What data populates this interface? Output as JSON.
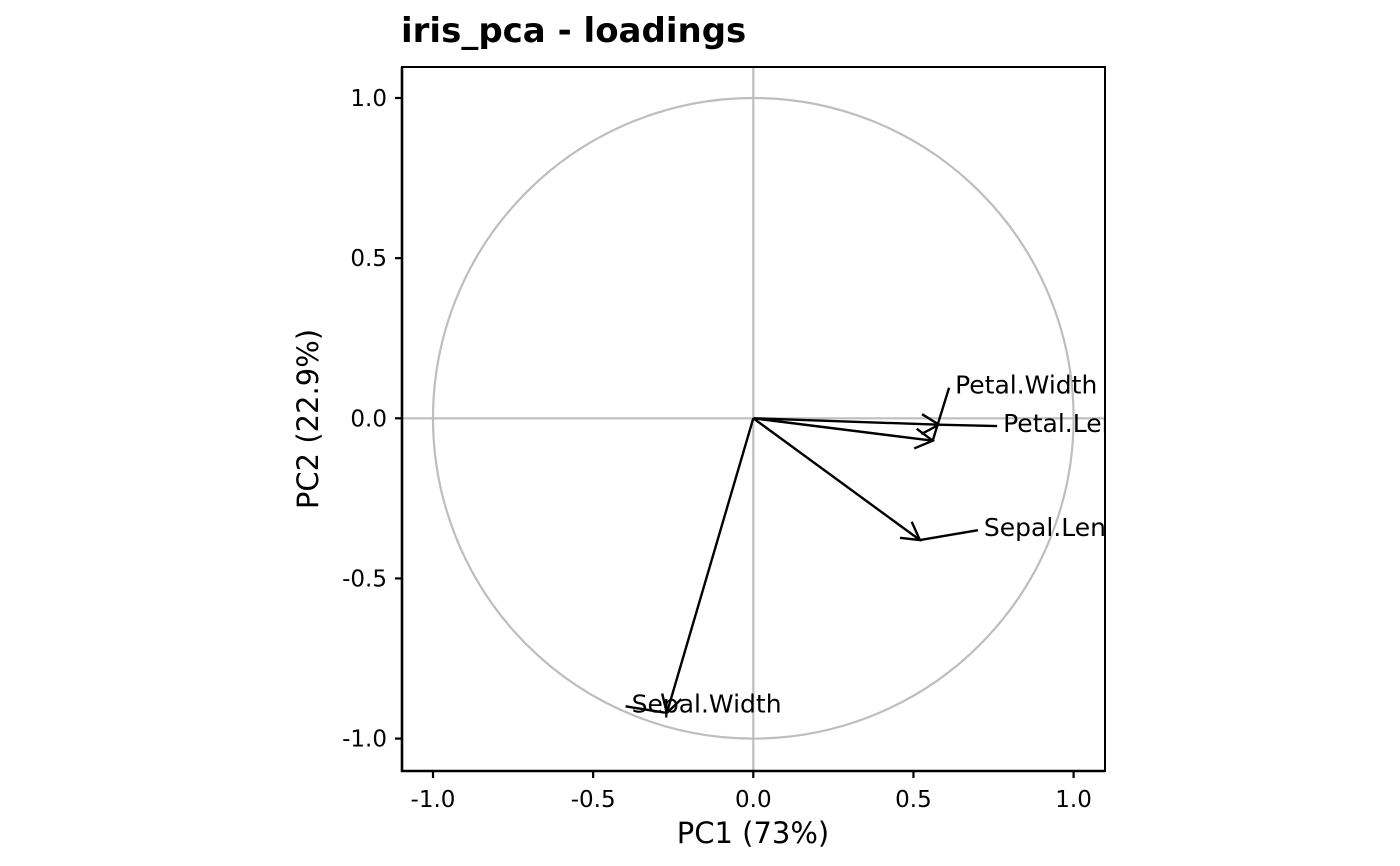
{
  "chart_data": {
    "type": "scatter",
    "title": "iris_pca - loadings",
    "xlabel": "PC1 (73%)",
    "ylabel": "PC2 (22.9%)",
    "xlim": [
      -1.1,
      1.1
    ],
    "ylim": [
      -1.1,
      1.1
    ],
    "x_ticks": [
      -1.0,
      -0.5,
      0.0,
      0.5,
      1.0
    ],
    "y_ticks": [
      -1.0,
      -0.5,
      0.0,
      0.5,
      1.0
    ],
    "x_tick_labels": [
      "-1.0",
      "-0.5",
      "0.0",
      "0.5",
      "1.0"
    ],
    "y_tick_labels": [
      "-1.0",
      "-0.5",
      "0.0",
      "0.5",
      "1.0"
    ],
    "unit_circle": true,
    "reference_lines": {
      "x": 0,
      "y": 0
    },
    "grid": false,
    "colors": {
      "arrows": "#000000",
      "reference": "#bebebe",
      "background": "#ffffff"
    },
    "loadings": [
      {
        "name": "Sepal.Length",
        "x": 0.52,
        "y": -0.38,
        "label_x": 0.72,
        "label_y": -0.34
      },
      {
        "name": "Sepal.Width",
        "x": -0.27,
        "y": -0.92,
        "label_x": -0.38,
        "label_y": -0.89
      },
      {
        "name": "Petal.Length",
        "x": 0.58,
        "y": -0.02,
        "label_x": 0.78,
        "label_y": -0.015
      },
      {
        "name": "Petal.Width",
        "x": 0.56,
        "y": -0.07,
        "label_x": 0.63,
        "label_y": 0.105
      }
    ]
  }
}
